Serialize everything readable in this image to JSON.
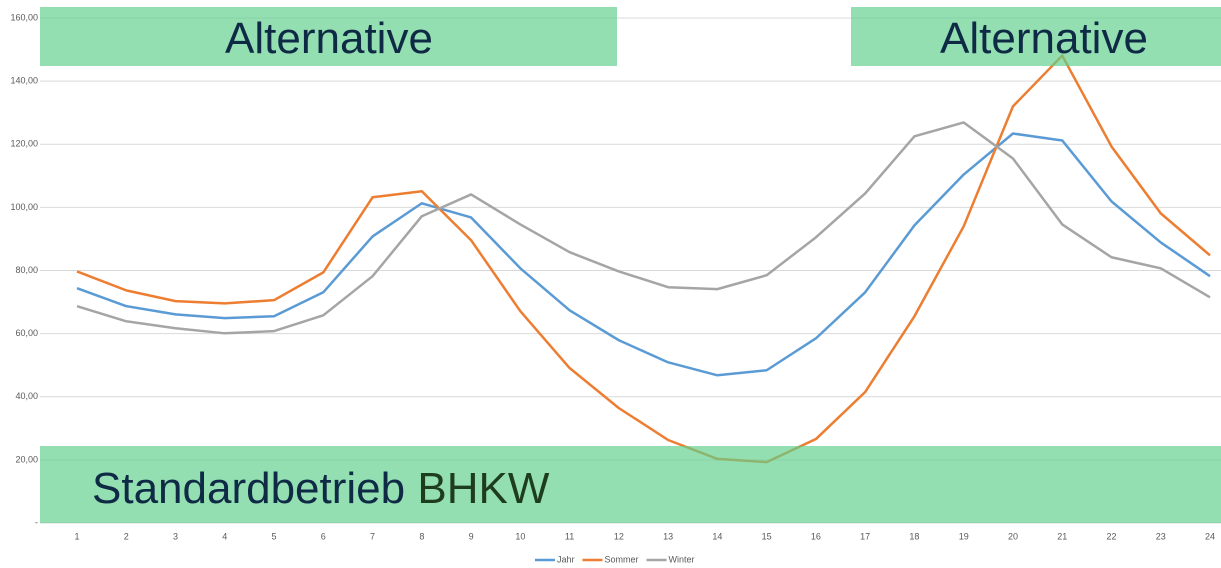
{
  "chart_data": {
    "type": "line",
    "categories": [
      "1",
      "2",
      "3",
      "4",
      "5",
      "6",
      "7",
      "8",
      "9",
      "10",
      "11",
      "12",
      "13",
      "14",
      "15",
      "16",
      "17",
      "18",
      "19",
      "20",
      "21",
      "22",
      "23",
      "24"
    ],
    "series": [
      {
        "name": "Jahr",
        "color": "#5b9bd5",
        "values": [
          74.4,
          68.7,
          66.1,
          64.9,
          65.5,
          73.1,
          90.8,
          101.3,
          96.8,
          80.7,
          67.4,
          57.9,
          50.9,
          46.8,
          48.4,
          58.5,
          73.1,
          94.3,
          110.4,
          123.4,
          121.2,
          101.9,
          88.9,
          78.2
        ]
      },
      {
        "name": "Sommer",
        "color": "#ed7d31",
        "values": [
          79.7,
          73.7,
          70.3,
          69.6,
          70.6,
          79.4,
          103.2,
          105.1,
          89.6,
          67.1,
          49.1,
          36.4,
          26.3,
          20.3,
          19.3,
          26.6,
          41.5,
          65.5,
          94.0,
          132.0,
          148.1,
          119.3,
          98.1,
          84.8
        ]
      },
      {
        "name": "Winter",
        "color": "#a5a5a5",
        "values": [
          68.7,
          63.9,
          61.7,
          60.1,
          60.8,
          65.8,
          78.2,
          97.2,
          104.1,
          94.6,
          85.8,
          79.7,
          74.7,
          74.1,
          78.5,
          90.5,
          104.4,
          122.5,
          126.9,
          115.5,
          94.6,
          84.2,
          80.7,
          71.5
        ]
      }
    ],
    "ylim": [
      0,
      160
    ],
    "yticks": [
      {
        "value": 0,
        "label": "-"
      },
      {
        "value": 20,
        "label": "20,00"
      },
      {
        "value": 40,
        "label": "40,00"
      },
      {
        "value": 60,
        "label": "60,00"
      },
      {
        "value": 80,
        "label": "80,00"
      },
      {
        "value": 100,
        "label": "100,00"
      },
      {
        "value": 120,
        "label": "120,00"
      },
      {
        "value": 140,
        "label": "140,00"
      },
      {
        "value": 160,
        "label": "160,00"
      }
    ],
    "grid": true,
    "legend": "bottom",
    "annotations": [
      {
        "text": "Alternative"
      },
      {
        "text": "Alternative"
      },
      {
        "parts": [
          "Standardbetrieb",
          "BHKW"
        ]
      }
    ]
  }
}
